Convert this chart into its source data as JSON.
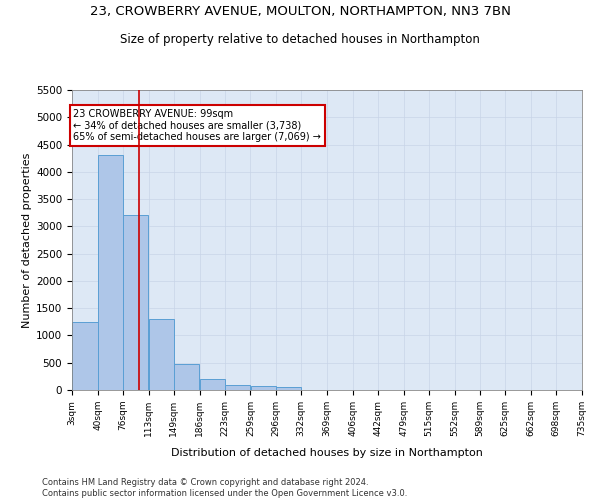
{
  "title_line1": "23, CROWBERRY AVENUE, MOULTON, NORTHAMPTON, NN3 7BN",
  "title_line2": "Size of property relative to detached houses in Northampton",
  "xlabel": "Distribution of detached houses by size in Northampton",
  "ylabel": "Number of detached properties",
  "footer1": "Contains HM Land Registry data © Crown copyright and database right 2024.",
  "footer2": "Contains public sector information licensed under the Open Government Licence v3.0.",
  "annotation_line1": "23 CROWBERRY AVENUE: 99sqm",
  "annotation_line2": "← 34% of detached houses are smaller (3,738)",
  "annotation_line3": "65% of semi-detached houses are larger (7,069) →",
  "property_size": 99,
  "bin_edges": [
    3,
    40,
    76,
    113,
    149,
    186,
    223,
    259,
    296,
    332,
    369,
    406,
    442,
    479,
    515,
    552,
    589,
    625,
    662,
    698,
    735
  ],
  "bar_heights": [
    1250,
    4300,
    3200,
    1300,
    475,
    200,
    100,
    65,
    50,
    0,
    0,
    0,
    0,
    0,
    0,
    0,
    0,
    0,
    0,
    0
  ],
  "bar_color": "#aec6e8",
  "bar_edge_color": "#5a9fd4",
  "vline_color": "#cc0000",
  "vline_x": 99,
  "annotation_box_color": "#cc0000",
  "ylim": [
    0,
    5500
  ],
  "yticks": [
    0,
    500,
    1000,
    1500,
    2000,
    2500,
    3000,
    3500,
    4000,
    4500,
    5000,
    5500
  ],
  "grid_color": "#c8d4e8",
  "bg_color": "#dde8f5",
  "title1_fontsize": 9.5,
  "title2_fontsize": 8.5,
  "xlabel_fontsize": 8,
  "ylabel_fontsize": 8
}
